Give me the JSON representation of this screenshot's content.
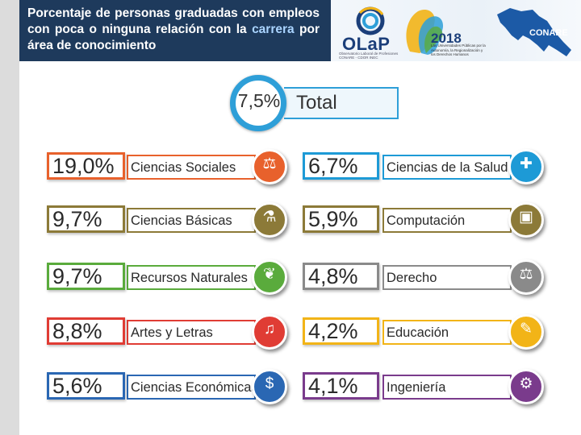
{
  "header": {
    "title_part1": "Porcentaje de  personas graduadas con empleos con poca o ninguna relación con la ",
    "title_highlight": "carrera",
    "title_part2": " por área de conocimiento"
  },
  "banner": {
    "olap_name": "OLaP",
    "olap_subtitle": "Observatorio Laboral de Profesiones CONARE - CDOR INEC",
    "year": "2018",
    "year_subtitle": "Las Universidades Públicas por la Autonomía, la Regionalización y los Derechos Humanos",
    "conare": "CONARE"
  },
  "total": {
    "value": "7,5%",
    "label": "Total"
  },
  "left_areas": [
    {
      "value": "19,0%",
      "label": "Ciencias Sociales",
      "color": "#e8612c",
      "icon": "social-sciences-icon",
      "glyph": "⚖"
    },
    {
      "value": "9,7%",
      "label": "Ciencias Básicas",
      "color": "#8c7a38",
      "icon": "basic-sciences-icon",
      "glyph": "⚗"
    },
    {
      "value": "9,7%",
      "label": "Recursos Naturales",
      "color": "#5aab3c",
      "icon": "natural-resources-icon",
      "glyph": "❦"
    },
    {
      "value": "8,8%",
      "label": "Artes y Letras",
      "color": "#e03c34",
      "icon": "arts-letters-icon",
      "glyph": "♫"
    },
    {
      "value": "5,6%",
      "label": "Ciencias Económicas",
      "color": "#2a67b3",
      "icon": "economic-sciences-icon",
      "glyph": "$"
    }
  ],
  "right_areas": [
    {
      "value": "6,7%",
      "label": "Ciencias de la Salud",
      "color": "#1d9ad6",
      "icon": "health-sciences-icon",
      "glyph": "✚"
    },
    {
      "value": "5,9%",
      "label": "Computación",
      "color": "#8c7a38",
      "icon": "computing-icon",
      "glyph": "▣"
    },
    {
      "value": "4,8%",
      "label": "Derecho",
      "color": "#8a8a8a",
      "icon": "law-icon",
      "glyph": "⚖"
    },
    {
      "value": "4,2%",
      "label": "Educación",
      "color": "#f2b417",
      "icon": "education-icon",
      "glyph": "✎"
    },
    {
      "value": "4,1%",
      "label": "Ingeniería",
      "color": "#7a3b8c",
      "icon": "engineering-icon",
      "glyph": "⚙"
    }
  ]
}
